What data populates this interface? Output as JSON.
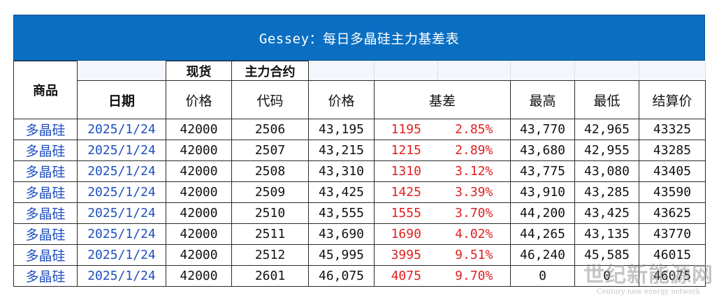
{
  "title": "Gessey：每日多晶硅主力基差表",
  "header": {
    "product": "商品",
    "spot_group": "现货",
    "contract_group": "主力合约",
    "date": "日期",
    "spot_price": "价格",
    "code": "代码",
    "price": "价格",
    "basis": "基差",
    "high": "最高",
    "low": "最低",
    "settle": "结算价"
  },
  "rows": [
    {
      "product": "多晶硅",
      "date": "2025/1/24",
      "spot": "42000",
      "code": "2506",
      "price": "43,195",
      "basis": "1195",
      "basis_pct": "2.85%",
      "high": "43,770",
      "low": "42,965",
      "settle": "43325"
    },
    {
      "product": "多晶硅",
      "date": "2025/1/24",
      "spot": "42000",
      "code": "2507",
      "price": "43,215",
      "basis": "1215",
      "basis_pct": "2.89%",
      "high": "43,680",
      "low": "42,955",
      "settle": "43285"
    },
    {
      "product": "多晶硅",
      "date": "2025/1/24",
      "spot": "42000",
      "code": "2508",
      "price": "43,310",
      "basis": "1310",
      "basis_pct": "3.12%",
      "high": "43,775",
      "low": "43,080",
      "settle": "43405"
    },
    {
      "product": "多晶硅",
      "date": "2025/1/24",
      "spot": "42000",
      "code": "2509",
      "price": "43,425",
      "basis": "1425",
      "basis_pct": "3.39%",
      "high": "43,910",
      "low": "43,285",
      "settle": "43590"
    },
    {
      "product": "多晶硅",
      "date": "2025/1/24",
      "spot": "42000",
      "code": "2510",
      "price": "43,555",
      "basis": "1555",
      "basis_pct": "3.70%",
      "high": "44,200",
      "low": "43,425",
      "settle": "43625"
    },
    {
      "product": "多晶硅",
      "date": "2025/1/24",
      "spot": "42000",
      "code": "2511",
      "price": "43,690",
      "basis": "1690",
      "basis_pct": "4.02%",
      "high": "44,265",
      "low": "43,135",
      "settle": "43770"
    },
    {
      "product": "多晶硅",
      "date": "2025/1/24",
      "spot": "42000",
      "code": "2512",
      "price": "45,995",
      "basis": "3995",
      "basis_pct": "9.51%",
      "high": "46,240",
      "low": "45,585",
      "settle": "46015"
    },
    {
      "product": "多晶硅",
      "date": "2025/1/24",
      "spot": "42000",
      "code": "2601",
      "price": "46,075",
      "basis": "4075",
      "basis_pct": "9.70%",
      "high": "0",
      "low": "0",
      "settle": "46075"
    }
  ],
  "watermark": {
    "top": "世纪新能源网",
    "bottom": "Century new energy network"
  }
}
